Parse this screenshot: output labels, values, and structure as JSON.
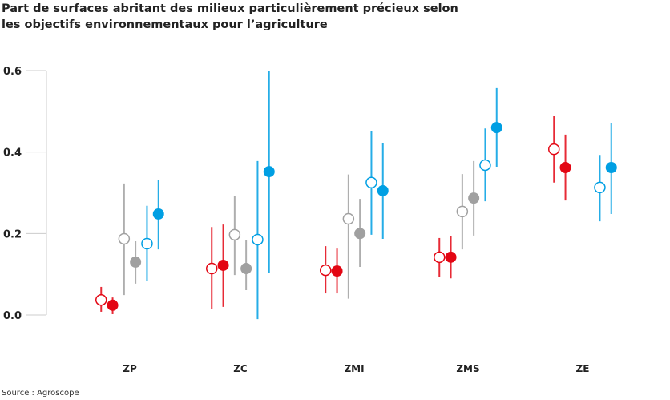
{
  "chart_data": {
    "type": "scatter",
    "title": "Part de surfaces abritant des milieux  particulièrement précieux selon les objectifs environnementaux pour l’agriculture",
    "title_lines": [
      "Part de surfaces abritant des milieux  particulièrement précieux selon",
      "les objectifs environnementaux pour l’agriculture"
    ],
    "source": "Source : Agroscope",
    "categories": [
      "ZP",
      "ZC",
      "ZMI",
      "ZMS",
      "ZE"
    ],
    "ylim": [
      -0.02,
      0.6
    ],
    "yticks": [
      "0.0",
      "0.2",
      "0.4",
      "0.6"
    ],
    "ytick_values": [
      0,
      0.2,
      0.4,
      0.6
    ],
    "grid": false,
    "series": [
      {
        "color": "#e30613",
        "fill": "open",
        "points": [
          [
            0.037,
            0.008,
            0.069
          ],
          [
            0.114,
            0.014,
            0.216
          ],
          [
            0.11,
            0.053,
            0.169
          ],
          [
            0.142,
            0.094,
            0.189
          ],
          [
            0.407,
            0.325,
            0.488
          ]
        ]
      },
      {
        "color": "#e30613",
        "fill": "filled",
        "points": [
          [
            0.024,
            0.002,
            0.043
          ],
          [
            0.122,
            0.02,
            0.222
          ],
          [
            0.108,
            0.053,
            0.163
          ],
          [
            0.142,
            0.09,
            0.193
          ],
          [
            0.362,
            0.281,
            0.443
          ]
        ]
      },
      {
        "color": "#a0a0a0",
        "fill": "open",
        "points": [
          [
            0.187,
            0.049,
            0.323
          ],
          [
            0.197,
            0.098,
            0.293
          ],
          [
            0.236,
            0.04,
            0.345
          ],
          [
            0.254,
            0.161,
            0.346
          ],
          null
        ]
      },
      {
        "color": "#a0a0a0",
        "fill": "filled",
        "points": [
          [
            0.13,
            0.077,
            0.181
          ],
          [
            0.114,
            0.061,
            0.183
          ],
          [
            0.2,
            0.118,
            0.285
          ],
          [
            0.287,
            0.195,
            0.378
          ],
          null
        ]
      },
      {
        "color": "#009fe3",
        "fill": "open",
        "points": [
          [
            0.175,
            0.083,
            0.268
          ],
          [
            0.185,
            -0.01,
            0.378
          ],
          [
            0.325,
            0.197,
            0.452
          ],
          [
            0.368,
            0.279,
            0.458
          ],
          [
            0.313,
            0.23,
            0.393
          ]
        ]
      },
      {
        "color": "#009fe3",
        "fill": "filled",
        "points": [
          [
            0.248,
            0.161,
            0.332
          ],
          [
            0.352,
            0.104,
            0.6
          ],
          [
            0.305,
            0.187,
            0.423
          ],
          [
            0.46,
            0.364,
            0.557
          ],
          [
            0.362,
            0.248,
            0.472
          ]
        ]
      }
    ]
  }
}
